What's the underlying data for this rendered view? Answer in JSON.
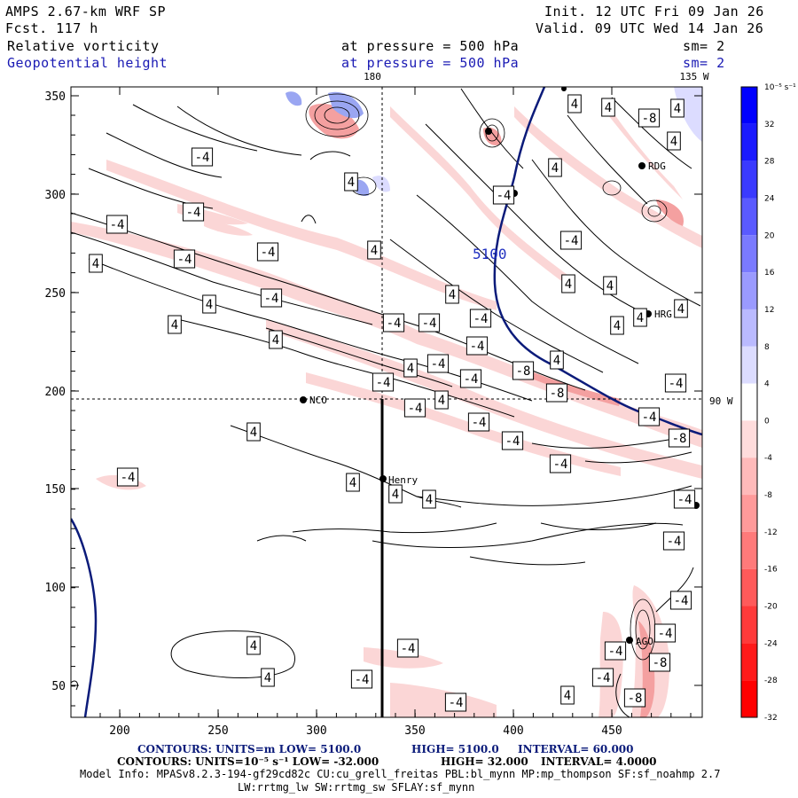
{
  "header": {
    "model": "AMPS 2.67-km WRF SP",
    "forecast": "Fcst.  117 h",
    "init": "Init. 12 UTC Fri 09 Jan 26",
    "valid": "Valid. 09 UTC Wed 14 Jan 26",
    "field1": "Relative vorticity",
    "field2": "Geopotential height",
    "pressure1": "at pressure =  500 hPa",
    "pressure2": "at pressure =  500 hPa",
    "sm1": "sm= 2",
    "sm2": "sm= 2"
  },
  "map": {
    "top_meridian_label": "180",
    "top_right_label": "135 W",
    "right_parallel_label": "90 W",
    "height_contour_label": "5100",
    "x_ticks": [
      "200",
      "250",
      "300",
      "350",
      "400",
      "450"
    ],
    "y_ticks": [
      "350",
      "300",
      "250",
      "200",
      "150",
      "100",
      "50"
    ],
    "stations": [
      "NCO",
      "Henry",
      "AGO",
      "HRG",
      "RDG"
    ],
    "contour_labels_pos": "4",
    "contour_labels_neg": "-4",
    "contour_labels_neg8": "-8"
  },
  "colorbar": {
    "unit": "10⁻⁵ s⁻¹",
    "ticks": [
      "32",
      "28",
      "24",
      "20",
      "16",
      "12",
      "8",
      "4",
      "0",
      "-4",
      "-8",
      "-12",
      "-16",
      "-20",
      "-24",
      "-28",
      "-32"
    ],
    "colors": [
      "#0000ff",
      "#1a1aff",
      "#3a3aff",
      "#5a5aff",
      "#7a7aff",
      "#9a9aff",
      "#babaff",
      "#dcdcff",
      "#ffffff",
      "#ffdcdc",
      "#ffbaba",
      "#ff9a9a",
      "#ff7a7a",
      "#ff5a5a",
      "#ff3a3a",
      "#ff1a1a",
      "#ff0000"
    ]
  },
  "footer": {
    "line1a": "CONTOURS:  UNITS=m  LOW=  5100.0",
    "line1b": "HIGH=  5100.0",
    "line1c": "INTERVAL=  60.000",
    "line2a": "CONTOURS:  UNITS=10⁻⁵ s⁻¹  LOW=  -32.000",
    "line2b": "HIGH=  32.000",
    "line2c": "INTERVAL=  4.0000",
    "line3": "Model Info: MPASv8.2.3-194-gf29cd82c CU:cu_grell_freitas PBL:bl_mynn MP:mp_thompson SF:sf_noahmp 2.7",
    "line4": "LW:rrtmg_lw SW:rrtmg_sw SFLAY:sf_mynn"
  }
}
